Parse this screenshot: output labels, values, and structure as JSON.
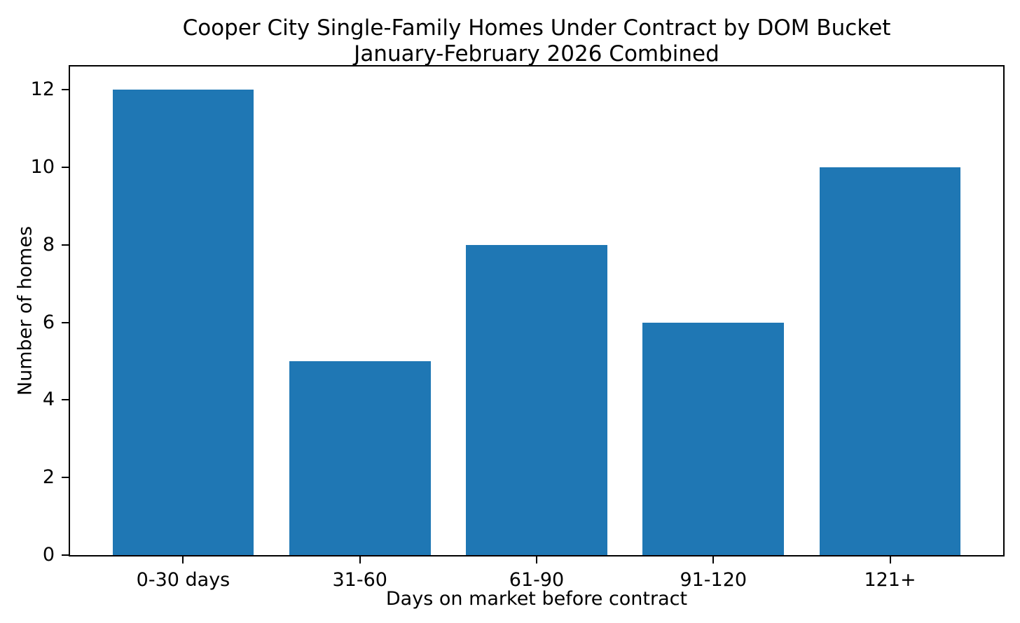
{
  "figure": {
    "title_line1": "Cooper City Single-Family Homes Under Contract by DOM Bucket",
    "title_line2": "January-February 2026 Combined"
  },
  "chart_data": {
    "type": "bar",
    "title": "Cooper City Single-Family Homes Under Contract by DOM Bucket\nJanuary-February 2026 Combined",
    "categories": [
      "0-30 days",
      "31-60",
      "61-90",
      "91-120",
      "121+"
    ],
    "values": [
      12,
      5,
      8,
      6,
      10
    ],
    "xlabel": "Days on market before contract",
    "ylabel": "Number of homes",
    "yticks": [
      0,
      2,
      4,
      6,
      8,
      10,
      12
    ],
    "ylim": [
      0,
      12.6
    ],
    "xlim": [
      -0.64,
      4.64
    ],
    "bar_width_units": 0.8,
    "grid": false,
    "legend": null,
    "bar_color": "#1f77b4",
    "axis_color": "#000000",
    "text_color": "#000000",
    "background_color": "#ffffff"
  }
}
